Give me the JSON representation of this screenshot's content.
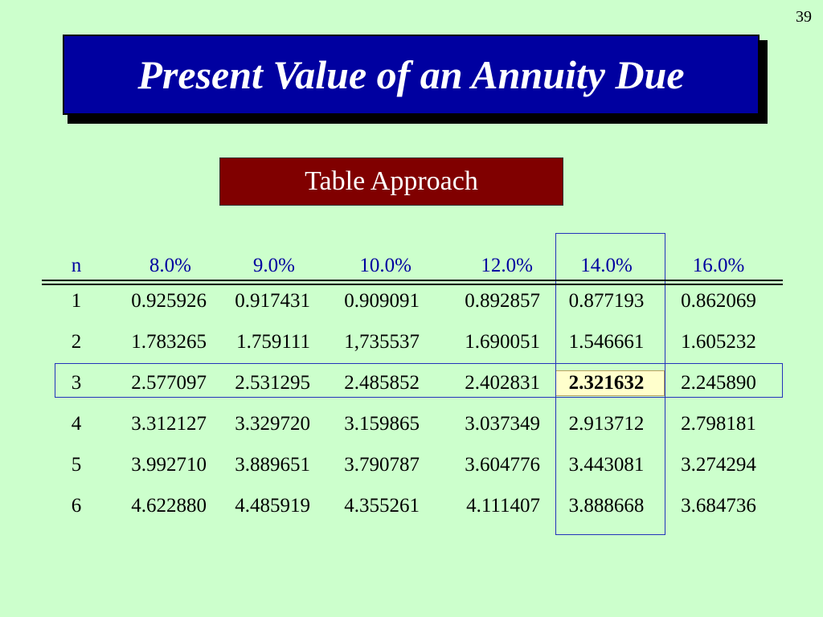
{
  "page_number": "39",
  "title": "Present Value of an Annuity Due",
  "subtitle": "Table Approach",
  "table": {
    "headers": [
      "n",
      "8.0%",
      "9.0%",
      "10.0%",
      "12.0%",
      "14.0%",
      "16.0%"
    ],
    "rows": [
      [
        "1",
        "0.925926",
        "0.917431",
        "0.909091",
        "0.892857",
        "0.877193",
        "0.862069"
      ],
      [
        "2",
        "1.783265",
        "1.759111",
        "1,735537",
        "1.690051",
        "1.546661",
        "1.605232"
      ],
      [
        "3",
        "2.577097",
        "2.531295",
        "2.485852",
        "2.402831",
        "2.321632",
        "2.245890"
      ],
      [
        "4",
        "3.312127",
        "3.329720",
        "3.159865",
        "3.037349",
        "2.913712",
        "2.798181"
      ],
      [
        "5",
        "3.992710",
        "3.889651",
        "3.790787",
        "3.604776",
        "3.443081",
        "3.274294"
      ],
      [
        "6",
        "4.622880",
        "4.485919",
        "4.355261",
        "4.111407",
        "3.888668",
        "3.684736"
      ]
    ],
    "highlighted_column": "14.0%",
    "highlighted_row": "3",
    "highlighted_value": "2.321632"
  },
  "colors": {
    "background": "#ccffcc",
    "title_box": "#0000a0",
    "subtitle_box": "#800000",
    "header_text": "#0000a0",
    "highlight_border": "#2233bb",
    "highlight_cell": "#ffffcc"
  }
}
